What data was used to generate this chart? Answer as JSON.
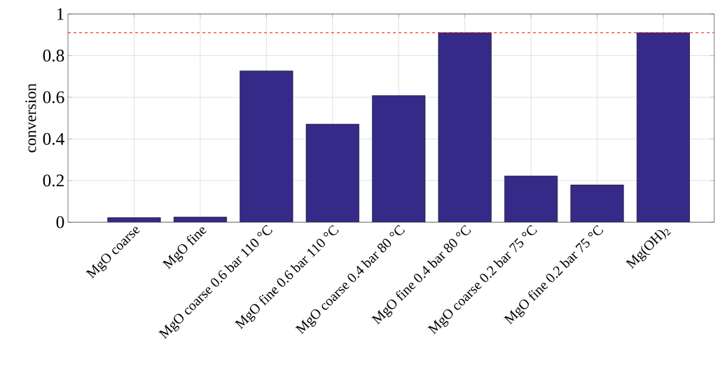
{
  "chart_data": {
    "type": "bar",
    "ylabel": "conversion",
    "categories": [
      "MgO coarse",
      "MgO fine",
      "MgO coarse 0.6 bar 110 °C",
      "MgO fine 0.6 bar 110 °C",
      "MgO coarse 0.4 bar 80 °C",
      "MgO fine 0.4 bar 80 °C",
      "MgO coarse 0.2 bar 75 °C",
      "MgO fine 0.2 bar 75 °C",
      "Mg(OH)$_{2}$"
    ],
    "values": [
      0.022,
      0.025,
      0.727,
      0.471,
      0.608,
      0.91,
      0.222,
      0.179,
      0.91
    ],
    "color": "#352a87",
    "ylim": [
      0,
      1
    ],
    "yticks": [
      0,
      0.2,
      0.4,
      0.6,
      0.8,
      1
    ],
    "grid": true,
    "ref_lines": [
      {
        "axis": "y",
        "value": 0.91,
        "color": "#ff0000",
        "line_style": "dashed"
      }
    ]
  }
}
